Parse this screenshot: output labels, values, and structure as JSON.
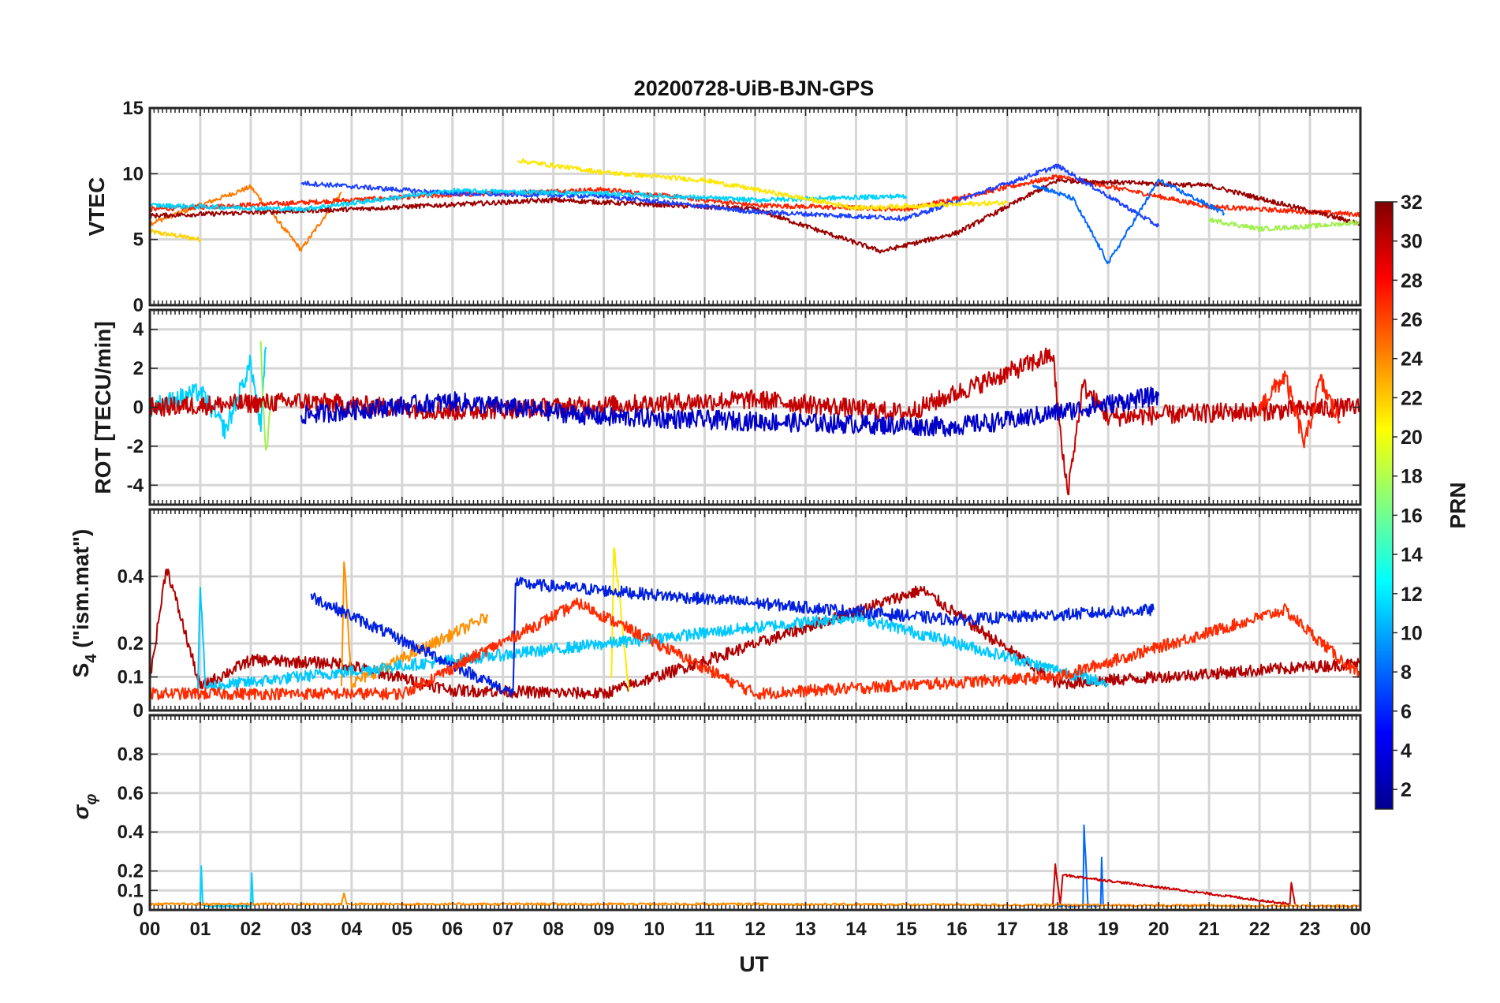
{
  "chart_data": [
    {
      "type": "line",
      "title": "20200728-UiB-BJN-GPS",
      "ylabel": "VTEC",
      "ylim": [
        0,
        15
      ],
      "yticks": [
        "0",
        "5",
        "10",
        "15"
      ],
      "x_ticklabels": [
        "00",
        "01",
        "02",
        "03",
        "04",
        "05",
        "06",
        "07",
        "08",
        "09",
        "10",
        "11",
        "12",
        "13",
        "14",
        "15",
        "16",
        "17",
        "18",
        "19",
        "20",
        "21",
        "22",
        "23",
        "00"
      ],
      "xlim": [
        0,
        24
      ],
      "grid": true,
      "series": [
        {
          "color": "#ffd000",
          "x": [
            0.0,
            1.0
          ],
          "y": [
            5.6,
            5.0
          ]
        },
        {
          "color": "#ff7a00",
          "x": [
            0.0,
            2.0,
            3.0,
            3.8
          ],
          "y": [
            6.2,
            9.0,
            4.2,
            8.6
          ]
        },
        {
          "color": "#ff2200",
          "x": [
            0.0,
            3.0,
            6.0,
            9.0,
            12.0,
            15.0,
            18.0,
            21.0,
            24.0
          ],
          "y": [
            7.3,
            7.8,
            8.4,
            8.8,
            7.6,
            7.3,
            9.8,
            7.5,
            6.9
          ]
        },
        {
          "color": "#9a0000",
          "x": [
            0.0,
            4.0,
            8.0,
            12.0,
            14.5,
            16.0,
            18.0,
            21.0,
            24.0
          ],
          "y": [
            6.8,
            7.3,
            8.0,
            7.3,
            4.1,
            5.5,
            9.5,
            9.1,
            6.2
          ]
        },
        {
          "color": "#1e40ff",
          "x": [
            3.0,
            6.0,
            9.0,
            12.0,
            15.0,
            18.0,
            20.0
          ],
          "y": [
            9.3,
            8.5,
            8.3,
            7.1,
            6.6,
            10.6,
            6.0
          ]
        },
        {
          "color": "#00d2ff",
          "x": [
            0.0,
            3.0,
            6.0,
            9.0,
            12.0,
            15.0
          ],
          "y": [
            7.6,
            7.3,
            8.7,
            8.5,
            8.0,
            8.3
          ]
        },
        {
          "color": "#ffe600",
          "x": [
            7.3,
            9.0,
            11.0,
            14.0,
            17.0
          ],
          "y": [
            11.0,
            10.1,
            9.5,
            7.4,
            7.8
          ]
        },
        {
          "color": "#0068ff",
          "x": [
            17.5,
            18.3,
            19.0,
            20.0,
            21.3
          ],
          "y": [
            9.2,
            8.1,
            3.2,
            9.5,
            7.0
          ]
        },
        {
          "color": "#a0f050",
          "x": [
            21.0,
            22.0,
            23.0,
            24.0
          ],
          "y": [
            6.5,
            5.8,
            6.0,
            6.3
          ]
        }
      ]
    },
    {
      "type": "line",
      "ylabel": "ROT [TECU/min]",
      "ylim": [
        -5,
        5
      ],
      "yticks": [
        "-4",
        "-2",
        "0",
        "2",
        "4"
      ],
      "xlim": [
        0,
        24
      ],
      "grid": true,
      "series": [
        {
          "color": "#00d2ff",
          "x": [
            0.0,
            1.0,
            1.5,
            2.0,
            2.2,
            2.3
          ],
          "y": [
            0.0,
            0.8,
            -1.2,
            2.3,
            -1.1,
            3.1
          ]
        },
        {
          "color": "#a0f050",
          "x": [
            2.2,
            2.3,
            2.4
          ],
          "y": [
            3.1,
            -2.6,
            0.5
          ]
        },
        {
          "color": "#c40000",
          "x": [
            0.0,
            3.0,
            6.0,
            9.0,
            12.0,
            15.0,
            17.9,
            18.1,
            18.2,
            18.5,
            19.0,
            24.0
          ],
          "y": [
            0.0,
            0.3,
            -0.2,
            0.1,
            0.4,
            -0.3,
            2.7,
            -2.6,
            -4.3,
            1.1,
            -0.5,
            0.0
          ]
        },
        {
          "color": "#ff2200",
          "x": [
            22.0,
            22.5,
            22.9,
            23.2,
            23.6
          ],
          "y": [
            0.0,
            1.6,
            -1.9,
            1.4,
            -0.8
          ]
        },
        {
          "color": "#0000c8",
          "x": [
            3.0,
            6.0,
            9.0,
            15.8,
            17.0,
            20.0
          ],
          "y": [
            -0.4,
            0.3,
            -0.5,
            -1.0,
            -0.7,
            0.6
          ]
        }
      ]
    },
    {
      "type": "line",
      "ylabel": "S4 (\"ism.mat\")",
      "ylabel_main": "S",
      "ylabel_sub": "4",
      "ylabel_rest": " (\"ism.mat\")",
      "ylim": [
        0,
        0.6
      ],
      "yticks": [
        "0",
        "0.1",
        "0.2",
        "0.4"
      ],
      "xlim": [
        0,
        24
      ],
      "grid": true,
      "series": [
        {
          "color": "#b00000",
          "x": [
            0.0,
            0.33,
            1.0,
            2.0,
            3.8,
            6.0,
            9.0,
            15.3,
            18.0,
            24.0
          ],
          "y": [
            0.09,
            0.43,
            0.07,
            0.15,
            0.14,
            0.06,
            0.05,
            0.36,
            0.08,
            0.14
          ]
        },
        {
          "color": "#ff9000",
          "x": [
            3.8,
            3.85,
            4.0,
            6.7
          ],
          "y": [
            0.06,
            0.46,
            0.08,
            0.28
          ]
        },
        {
          "color": "#ffea00",
          "x": [
            9.15,
            9.2,
            9.5
          ],
          "y": [
            0.08,
            0.5,
            0.06
          ]
        },
        {
          "color": "#00c8ff",
          "x": [
            0.95,
            1.0,
            1.1,
            14.0,
            19.0
          ],
          "y": [
            0.06,
            0.37,
            0.07,
            0.28,
            0.08
          ]
        },
        {
          "color": "#0020e0",
          "x": [
            3.2,
            7.2,
            7.25,
            16.0,
            19.9
          ],
          "y": [
            0.34,
            0.05,
            0.38,
            0.27,
            0.3
          ]
        },
        {
          "color": "#ff2a00",
          "x": [
            0.0,
            5.0,
            8.5,
            12.0,
            18.0,
            22.5,
            24.0
          ],
          "y": [
            0.05,
            0.05,
            0.32,
            0.05,
            0.1,
            0.3,
            0.1
          ]
        }
      ]
    },
    {
      "type": "line",
      "ylabel": "σφ",
      "ylabel_main": "σ",
      "ylabel_sub": "φ",
      "ylim": [
        0,
        1.0
      ],
      "yticks": [
        "0",
        "0.1",
        "0.2",
        "0.4",
        "0.6",
        "0.8"
      ],
      "xlabel": "UT",
      "xlim": [
        0,
        24
      ],
      "grid": true,
      "series": [
        {
          "color": "#00d2ff",
          "x": [
            1.0,
            1.02,
            1.05,
            2.0,
            2.02,
            2.05
          ],
          "y": [
            0.02,
            0.22,
            0.02,
            0.02,
            0.19,
            0.02
          ]
        },
        {
          "color": "#0068ff",
          "x": [
            18.0,
            18.5,
            18.52,
            18.6,
            18.85,
            18.87,
            18.9
          ],
          "y": [
            0.02,
            0.02,
            0.43,
            0.02,
            0.02,
            0.27,
            0.02
          ]
        },
        {
          "color": "#cc0000",
          "x": [
            17.9,
            17.95,
            18.05,
            18.1,
            22.6,
            22.63,
            22.7
          ],
          "y": [
            0.02,
            0.23,
            0.03,
            0.18,
            0.03,
            0.14,
            0.03
          ]
        },
        {
          "color": "#ff8c00",
          "x": [
            0.0,
            3.8,
            3.85,
            3.9,
            12.0,
            24.0
          ],
          "y": [
            0.03,
            0.03,
            0.09,
            0.03,
            0.03,
            0.02
          ]
        }
      ]
    }
  ],
  "colorbar": {
    "label": "PRN",
    "ticks": [
      "2",
      "4",
      "6",
      "8",
      "10",
      "12",
      "14",
      "16",
      "18",
      "20",
      "22",
      "24",
      "26",
      "28",
      "30",
      "32"
    ],
    "range": [
      1,
      32
    ],
    "colormap": "jet"
  }
}
